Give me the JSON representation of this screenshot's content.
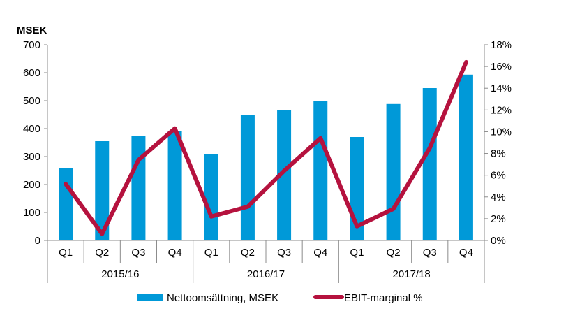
{
  "chart_data": {
    "type": "bar",
    "y_unit_label": "MSEK",
    "categories": [
      "Q1",
      "Q2",
      "Q3",
      "Q4",
      "Q1",
      "Q2",
      "Q3",
      "Q4",
      "Q1",
      "Q2",
      "Q3",
      "Q4"
    ],
    "groups": [
      {
        "label": "2015/16",
        "span": 4
      },
      {
        "label": "2016/17",
        "span": 4
      },
      {
        "label": "2017/18",
        "span": 4
      }
    ],
    "series": [
      {
        "name": "Nettoomsättning, MSEK",
        "type": "bar",
        "axis": "left",
        "color": "#0099D8",
        "values": [
          259,
          355,
          375,
          390,
          310,
          448,
          465,
          498,
          370,
          488,
          545,
          593
        ]
      },
      {
        "name": "EBIT-marginal %",
        "type": "line",
        "axis": "right",
        "color": "#B5123E",
        "values": [
          5.2,
          0.6,
          7.4,
          10.3,
          2.2,
          3.1,
          6.4,
          9.4,
          1.3,
          2.9,
          8.5,
          16.4
        ]
      }
    ],
    "y_left": {
      "min": 0,
      "max": 700,
      "ticks": [
        0,
        100,
        200,
        300,
        400,
        500,
        600,
        700
      ]
    },
    "y_right": {
      "min": 0,
      "max": 18,
      "ticks": [
        0,
        2,
        4,
        6,
        8,
        10,
        12,
        14,
        16,
        18
      ],
      "suffix": "%"
    },
    "grid": false,
    "legend_position": "bottom"
  }
}
